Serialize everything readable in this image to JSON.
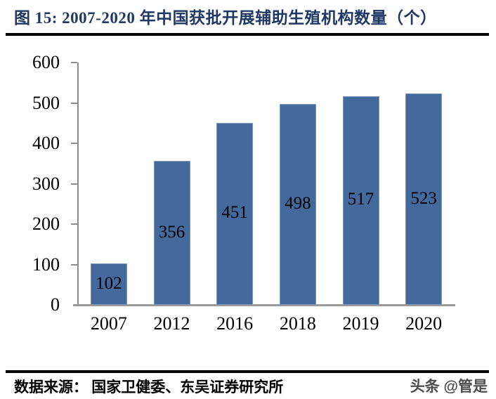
{
  "title": "图 15: 2007-2020 年中国获批开展辅助生殖机构数量（个）",
  "source": "数据来源： 国家卫健委、东吴证券研究所",
  "watermark": "头条 @管是",
  "colors": {
    "title": "#1F3864",
    "bar": "#44699D",
    "bar_border": "#7e97bd",
    "axis": "#8c8c8c",
    "text": "#000000",
    "divider": "#000000"
  },
  "chart_data": {
    "type": "bar",
    "title": "图 15: 2007-2020 年中国获批开展辅助生殖机构数量（个）",
    "categories": [
      "2007",
      "2012",
      "2016",
      "2018",
      "2019",
      "2020"
    ],
    "values": [
      102,
      356,
      451,
      498,
      517,
      523
    ],
    "xlabel": "",
    "ylabel": "",
    "ylim": [
      0,
      600
    ],
    "yticks": [
      0,
      100,
      200,
      300,
      400,
      500,
      600
    ],
    "grid": false,
    "legend": false,
    "value_labels_position": "inside-center",
    "bar_color": "#44699D"
  }
}
